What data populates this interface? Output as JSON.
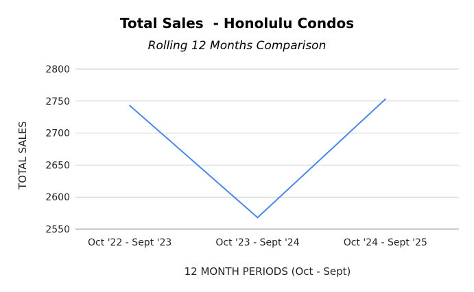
{
  "chart_data": {
    "type": "line",
    "title": "Total Sales  - Honolulu Condos",
    "subtitle": "Rolling 12 Months Comparison",
    "xlabel": "12 MONTH PERIODS (Oct - Sept)",
    "ylabel": "TOTAL SALES",
    "categories": [
      "Oct '22 - Sept '23",
      "Oct '23 - Sept '24",
      "Oct '24 - Sept '25"
    ],
    "series": [
      {
        "values": [
          2743,
          2568,
          2753
        ],
        "color": "#4a86e8"
      }
    ],
    "ylim": [
      2550,
      2800
    ],
    "yticks": [
      2550,
      2600,
      2650,
      2700,
      2750,
      2800
    ],
    "grid": true,
    "legend": "none"
  }
}
